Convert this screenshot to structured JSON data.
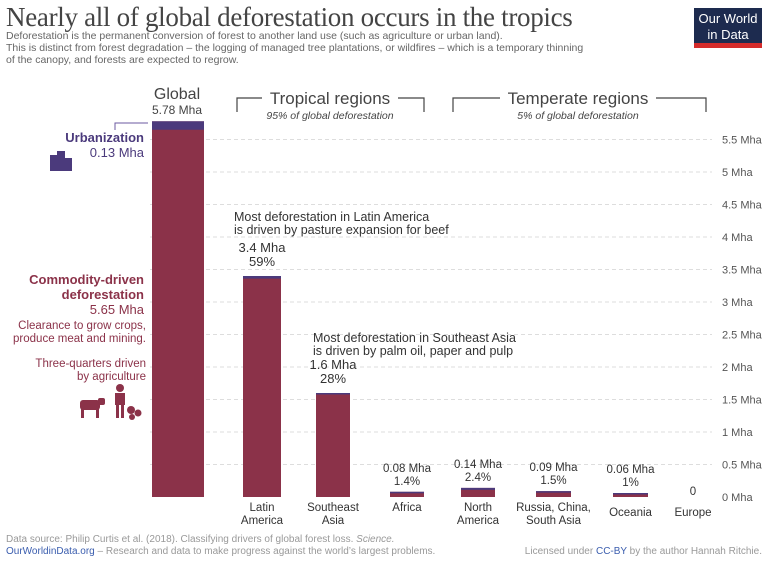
{
  "header": {
    "title": "Nearly all of global deforestation occurs in the tropics",
    "subtitle_lines": [
      "Deforestation is the permanent conversion of forest to another land use (such  as agriculture or urban land).",
      "This is distinct from forest  degradation – the logging of managed tree plantations, or wildfires – which is a temporary thinning",
      "of the canopy, and forests are expected to regrow."
    ],
    "logo_line1": "Our World",
    "logo_line2": "in Data"
  },
  "groups": {
    "tropical_label": "Tropical regions",
    "tropical_share": "95% of global deforestation",
    "temperate_label": "Temperate regions",
    "temperate_share": "5% of global deforestation"
  },
  "annotations": {
    "global_label": "Global",
    "global_value": "5.78 Mha",
    "urbanization_label": "Urbanization",
    "urbanization_value": "0.13 Mha",
    "commodity_label_1": "Commodity-driven",
    "commodity_label_2": "deforestation",
    "commodity_value": "5.65 Mha",
    "commodity_desc_1": "Clearance to grow crops,",
    "commodity_desc_2": "produce meat and mining.",
    "agri_note_1": "Three-quarters driven",
    "agri_note_2": "by agriculture",
    "latam_note_1": "Most deforestation in Latin America",
    "latam_note_2": "is driven by pasture expansion for beef",
    "sea_note_1": "Most deforestation in Southeast Asia",
    "sea_note_2": "is driven by palm oil, paper and pulp"
  },
  "chart_data": {
    "type": "bar",
    "stacked": true,
    "ylim": [
      0,
      5.78
    ],
    "yticks": [
      0,
      0.5,
      1,
      1.5,
      2,
      2.5,
      3,
      3.5,
      4,
      4.5,
      5,
      5.5
    ],
    "ytick_labels": [
      "0 Mha",
      "0.5 Mha",
      "1 Mha",
      "1.5 Mha",
      "2 Mha",
      "2.5 Mha",
      "3 Mha",
      "3.5 Mha",
      "4 Mha",
      "4.5 Mha",
      "5 Mha",
      "5.5 Mha"
    ],
    "grid": true,
    "categories": [
      {
        "label1": "",
        "label2": "",
        "total": 5.78,
        "urbanization": 0.13,
        "value_label": "",
        "share_label": ""
      },
      {
        "label1": "Latin",
        "label2": "America",
        "total": 3.4,
        "urbanization": 0.04,
        "value_label": "3.4 Mha",
        "share_label": "59%"
      },
      {
        "label1": "Southeast",
        "label2": "Asia",
        "total": 1.6,
        "urbanization": 0.02,
        "value_label": "1.6 Mha",
        "share_label": "28%"
      },
      {
        "label1": "Africa",
        "label2": "",
        "total": 0.08,
        "urbanization": 0.02,
        "value_label": "0.08 Mha",
        "share_label": "1.4%"
      },
      {
        "label1": "North",
        "label2": "America",
        "total": 0.14,
        "urbanization": 0.03,
        "value_label": "0.14 Mha",
        "share_label": "2.4%"
      },
      {
        "label1": "Russia, China,",
        "label2": "South Asia",
        "total": 0.09,
        "urbanization": 0.01,
        "value_label": "0.09 Mha",
        "share_label": "1.5%"
      },
      {
        "label1": "Oceania",
        "label2": "",
        "total": 0.06,
        "urbanization": 0.005,
        "value_label": "0.06 Mha",
        "share_label": "1%"
      },
      {
        "label1": "Europe",
        "label2": "",
        "total": 0,
        "urbanization": 0,
        "value_label": "0",
        "share_label": ""
      }
    ],
    "colors": {
      "commodity": "#8b3249",
      "urbanization": "#4b3a7c",
      "grid": "#dddddd"
    }
  },
  "footer": {
    "source": "Data source: Philip Curtis et al. (2018). Classifying drivers of global forest loss.",
    "source_journal": "Science.",
    "site": "OurWorldinData.org",
    "tagline": " – Research and data to make progress against the world’s largest problems.",
    "license_pre": "Licensed under ",
    "license_link": "CC-BY",
    "license_post": " by the author Hannah Ritchie."
  }
}
